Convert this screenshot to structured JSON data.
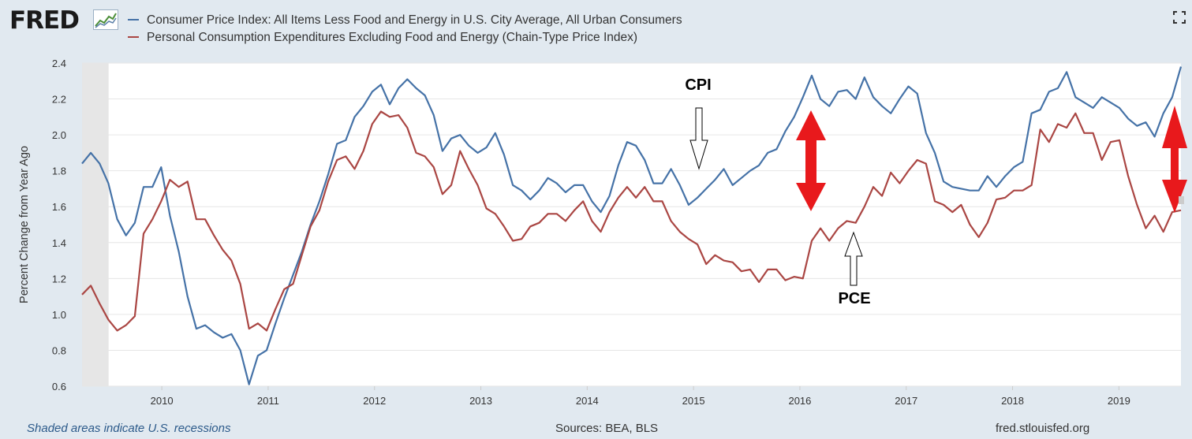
{
  "header": {
    "logo": "FRED",
    "fullscreen_icon": "expand-icon"
  },
  "legend": [
    {
      "label": "Consumer Price Index: All Items Less Food and Energy in U.S. City Average, All Urban Consumers",
      "color": "#4572a7"
    },
    {
      "label": "Personal Consumption Expenditures Excluding Food and Energy (Chain-Type Price Index)",
      "color": "#aa4643"
    }
  ],
  "footer": {
    "recession_note": "Shaded areas indicate U.S. recessions",
    "sources": "Sources: BEA, BLS",
    "site": "fred.stlouisfed.org"
  },
  "annotations": {
    "cpi_label": "CPI",
    "pce_label": "PCE",
    "gap_arrow_color": "#e8191c"
  },
  "chart_data": {
    "type": "line",
    "ylabel": "Percent Change from Year Ago",
    "xlabel": "",
    "ylim": [
      0.6,
      2.4
    ],
    "yticks": [
      "0.6",
      "0.8",
      "1.0",
      "1.2",
      "1.4",
      "1.6",
      "1.8",
      "2.0",
      "2.2",
      "2.4"
    ],
    "xticks": [
      "2010",
      "2011",
      "2012",
      "2013",
      "2014",
      "2015",
      "2016",
      "2017",
      "2018",
      "2019"
    ],
    "start": "2009-04",
    "end": "2019-08",
    "grid": "horizontal",
    "recession": [
      "2009-04",
      "2009-06"
    ],
    "series": [
      {
        "name": "Consumer Price Index: All Items Less Food and Energy in U.S. City Average, All Urban Consumers",
        "color": "#4572a7",
        "values": [
          1.84,
          1.9,
          1.84,
          1.73,
          1.53,
          1.44,
          1.51,
          1.71,
          1.71,
          1.82,
          1.55,
          1.35,
          1.1,
          0.92,
          0.94,
          0.9,
          0.87,
          0.89,
          0.8,
          0.61,
          0.77,
          0.8,
          0.95,
          1.09,
          1.22,
          1.35,
          1.5,
          1.63,
          1.78,
          1.95,
          1.97,
          2.1,
          2.16,
          2.24,
          2.28,
          2.17,
          2.26,
          2.31,
          2.26,
          2.22,
          2.11,
          1.91,
          1.98,
          2.0,
          1.94,
          1.9,
          1.93,
          2.01,
          1.89,
          1.72,
          1.69,
          1.64,
          1.69,
          1.76,
          1.73,
          1.68,
          1.72,
          1.72,
          1.63,
          1.57,
          1.66,
          1.83,
          1.96,
          1.94,
          1.86,
          1.73,
          1.73,
          1.81,
          1.72,
          1.61,
          1.65,
          1.7,
          1.75,
          1.81,
          1.72,
          1.76,
          1.8,
          1.83,
          1.9,
          1.92,
          2.02,
          2.1,
          2.21,
          2.33,
          2.2,
          2.16,
          2.24,
          2.25,
          2.2,
          2.32,
          2.21,
          2.16,
          2.12,
          2.2,
          2.27,
          2.23,
          2.01,
          1.9,
          1.74,
          1.71,
          1.7,
          1.69,
          1.69,
          1.77,
          1.71,
          1.77,
          1.82,
          1.85,
          2.12,
          2.14,
          2.24,
          2.26,
          2.35,
          2.21,
          2.18,
          2.15,
          2.21,
          2.18,
          2.15,
          2.09,
          2.05,
          2.07,
          1.99,
          2.12,
          2.21,
          2.38
        ]
      },
      {
        "name": "Personal Consumption Expenditures Excluding Food and Energy (Chain-Type Price Index)",
        "color": "#aa4643",
        "values": [
          1.11,
          1.16,
          1.06,
          0.97,
          0.91,
          0.94,
          0.99,
          1.45,
          1.53,
          1.63,
          1.75,
          1.71,
          1.74,
          1.53,
          1.53,
          1.44,
          1.36,
          1.3,
          1.17,
          0.92,
          0.95,
          0.91,
          1.03,
          1.14,
          1.17,
          1.33,
          1.49,
          1.58,
          1.74,
          1.86,
          1.88,
          1.81,
          1.91,
          2.06,
          2.13,
          2.1,
          2.11,
          2.04,
          1.9,
          1.88,
          1.82,
          1.67,
          1.72,
          1.91,
          1.81,
          1.72,
          1.59,
          1.56,
          1.49,
          1.41,
          1.42,
          1.49,
          1.51,
          1.56,
          1.56,
          1.52,
          1.58,
          1.63,
          1.52,
          1.46,
          1.57,
          1.65,
          1.71,
          1.65,
          1.71,
          1.63,
          1.63,
          1.52,
          1.46,
          1.42,
          1.39,
          1.28,
          1.33,
          1.3,
          1.29,
          1.24,
          1.25,
          1.18,
          1.25,
          1.25,
          1.19,
          1.21,
          1.2,
          1.41,
          1.48,
          1.41,
          1.48,
          1.52,
          1.51,
          1.6,
          1.71,
          1.66,
          1.79,
          1.73,
          1.8,
          1.86,
          1.84,
          1.63,
          1.61,
          1.57,
          1.61,
          1.5,
          1.43,
          1.51,
          1.64,
          1.65,
          1.69,
          1.69,
          1.72,
          2.03,
          1.96,
          2.06,
          2.04,
          2.12,
          2.01,
          2.01,
          1.86,
          1.96,
          1.97,
          1.77,
          1.61,
          1.48,
          1.55,
          1.46,
          1.57,
          1.58
        ]
      }
    ]
  }
}
